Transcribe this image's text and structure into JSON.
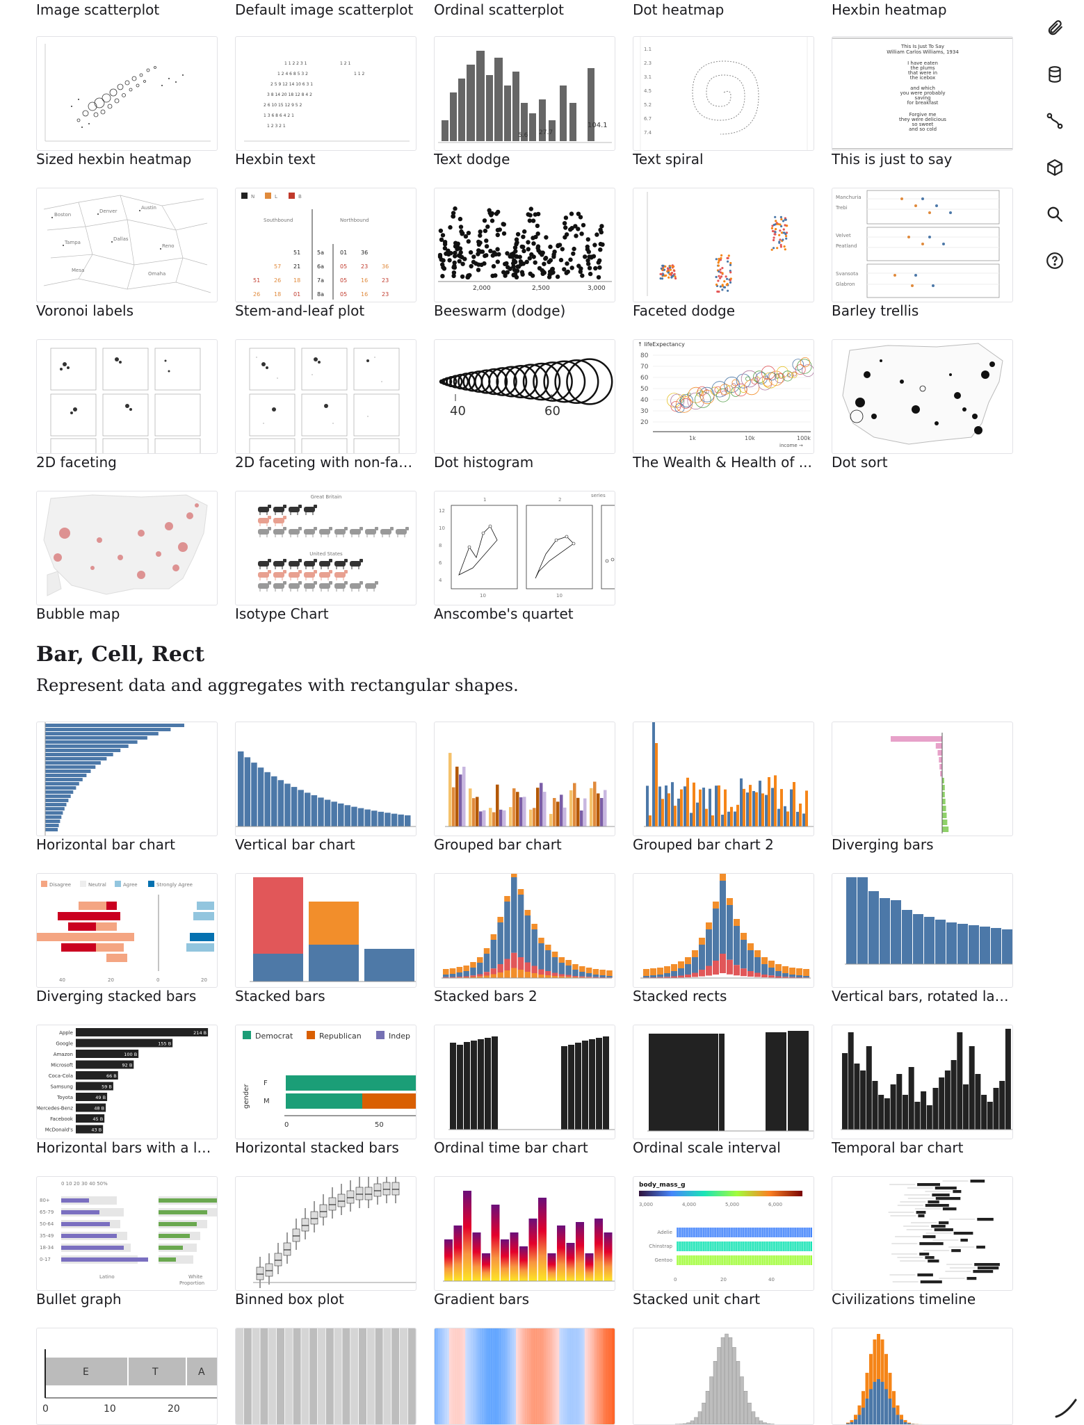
{
  "rows": [
    {
      "top_labels": [
        "Image scatterplot",
        "Default image scatterplot",
        "Ordinal scatterplot",
        "Dot heatmap",
        "Hexbin heatmap"
      ]
    },
    {
      "cards": [
        "Sized hexbin heatmap",
        "Hexbin text",
        "Text dodge",
        "Text spiral",
        "This is just to say"
      ]
    },
    {
      "cards": [
        "Voronoi labels",
        "Stem-and-leaf plot",
        "Beeswarm (dodge)",
        "Faceted dodge",
        "Barley trellis"
      ]
    },
    {
      "cards": [
        "2D faceting",
        "2D faceting with non-fac...",
        "Dot histogram",
        "The Wealth & Health of ...",
        "Dot sort"
      ]
    },
    {
      "cards": [
        "Bubble map",
        "Isotype Chart",
        "Anscombe's quartet"
      ]
    }
  ],
  "section": {
    "title": "Bar, Cell, Rect",
    "description": "Represent data and aggregates with rectangular shapes."
  },
  "bar_rows": [
    {
      "cards": [
        "Horizontal bar chart",
        "Vertical bar chart",
        "Grouped bar chart",
        "Grouped bar chart 2",
        "Diverging bars"
      ]
    },
    {
      "cards": [
        "Diverging stacked bars",
        "Stacked bars",
        "Stacked bars 2",
        "Stacked rects",
        "Vertical bars, rotated lab..."
      ]
    },
    {
      "cards": [
        "Horizontal bars with a la...",
        "Horizontal stacked bars",
        "Ordinal time bar chart",
        "Ordinal scale interval",
        "Temporal bar chart"
      ]
    },
    {
      "cards": [
        "Bullet graph",
        "Binned box plot",
        "Gradient bars",
        "Stacked unit chart",
        "Civilizations timeline"
      ]
    }
  ],
  "thumb_text": {
    "poem_title": "This Is Just To Say",
    "poem_author": "William Carlos Williams, 1934",
    "poem_lines": [
      "I have eaten",
      "the plums",
      "that were in",
      "the icebox",
      "and which",
      "you were probably",
      "saving",
      "for breakfast",
      "Forgive me",
      "they were delicious",
      "so sweet",
      "and so cold"
    ],
    "stem_south": "Southbound",
    "stem_north": "Northbound",
    "stem_legend": [
      "N",
      "L",
      "B"
    ],
    "dodge_ticks": [
      "2,000",
      "2,500",
      "3,000"
    ],
    "dothist_ticks": [
      "40",
      "60"
    ],
    "wealth_ylabel": "↑ lifeExpectancy",
    "wealth_yticks": [
      "80",
      "70",
      "60",
      "50",
      "40",
      "30",
      "20"
    ],
    "wealth_xticks": [
      "1k",
      "10k",
      "100k"
    ],
    "wealth_xlabel": "income →",
    "isotype_gb": "Great Britain",
    "isotype_us": "United States",
    "textdodge_vals": [
      "104.1",
      "27.7",
      "5.6"
    ],
    "diverging_legend": [
      "Disagree",
      "Neutral",
      "Agree",
      "Strongly Agree"
    ],
    "diverging_ticks": [
      "40",
      "20",
      "0",
      "20"
    ],
    "hbl_companies": [
      "Apple",
      "Google",
      "Amazon",
      "Microsoft",
      "Coca-Cola",
      "Samsung",
      "Toyota",
      "Mercedes-Benz",
      "Facebook",
      "McDonald's"
    ],
    "hbl_values": [
      "214 B",
      "155 B",
      "100 B",
      "92 B",
      "66 B",
      "59 B",
      "49 B",
      "48 B",
      "45 B",
      "43 B"
    ],
    "hstack_legend": [
      "Democrat",
      "Republican",
      "Indep"
    ],
    "hstack_axis": "gender",
    "hstack_rows": [
      "F",
      "M"
    ],
    "hstack_ticks": [
      "0",
      "50"
    ],
    "unit_title": "body_mass_g",
    "unit_ticks": [
      "3,000",
      "4,000",
      "5,000",
      "6,000"
    ],
    "unit_species": [
      "Adelie",
      "Chinstrap",
      "Gentoo"
    ],
    "unit_xticks": [
      "0",
      "20",
      "40"
    ],
    "bullet_ticks": "0 10 20 30 40 50%",
    "bullet_ages": [
      "80+",
      "65-79",
      "50-64",
      "35-49",
      "18-34",
      "0-17"
    ],
    "bullet_labels": [
      "Latino",
      "White"
    ],
    "bullet_prop": "Proportion",
    "bottom_ticks": [
      "0",
      "10",
      "20"
    ],
    "bottom_letters": [
      "E",
      "T",
      "A"
    ]
  },
  "rail": [
    "paperclip-icon",
    "database-icon",
    "route-icon",
    "cube-icon",
    "search-icon",
    "help-icon"
  ]
}
